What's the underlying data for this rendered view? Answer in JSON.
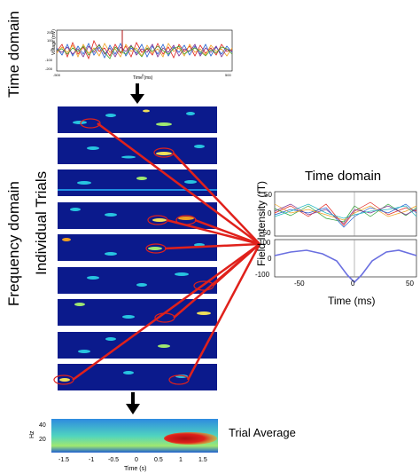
{
  "labels": {
    "left_time_domain": "Time domain",
    "frequency_domain": "Frequency domain",
    "individual_trials": "Individual Trials",
    "right_time_domain": "Time domain",
    "trial_average": "Trial Average"
  },
  "top_plot": {
    "ylabel": "Voltage (mV)",
    "xlabel": "Time (ms)",
    "yticks": [
      "200",
      "100",
      "0",
      "-100",
      "-200"
    ],
    "xticks": [
      "-500",
      "0",
      "500"
    ]
  },
  "right_plot": {
    "ylabel": "Field Intensity (fT)",
    "xlabel": "Time (ms)",
    "top_yticks": [
      "50",
      "0",
      "-50"
    ],
    "bottom_yticks": [
      "100",
      "0",
      "-100"
    ],
    "xticks": [
      "-50",
      "0",
      "50"
    ]
  },
  "bottom_plot": {
    "ylabel": "Hz",
    "xlabel": "Time (s)",
    "yticks": [
      "40",
      "20"
    ],
    "xticks": [
      "-1.5",
      "-1",
      "-0.5",
      "0",
      "0.5",
      "1",
      "1.5"
    ]
  },
  "colors": {
    "arrow": "#000000",
    "connector": "#e0211b",
    "spectrogram_bg": "#0b1a8c",
    "average_line": "#6a6fe0"
  },
  "chart_data": [
    {
      "type": "line",
      "title": "",
      "xlabel": "Time (s)",
      "ylabel": "Hz",
      "note_series": "trial-average spectrogram (heatmap)",
      "xlim": [
        -1.8,
        1.8
      ],
      "ylim": [
        10,
        45
      ]
    },
    {
      "type": "line",
      "xlabel": "Time (ms)",
      "ylabel": "Field Intensity (fT)",
      "xlim": [
        -60,
        60
      ],
      "ylim": [
        -130,
        110
      ],
      "x": [
        -60,
        -50,
        -40,
        -30,
        -20,
        -10,
        0,
        10,
        20,
        30,
        40,
        50,
        60
      ],
      "values": [
        25,
        35,
        40,
        30,
        5,
        -50,
        -110,
        -50,
        5,
        35,
        45,
        30,
        20
      ]
    }
  ]
}
